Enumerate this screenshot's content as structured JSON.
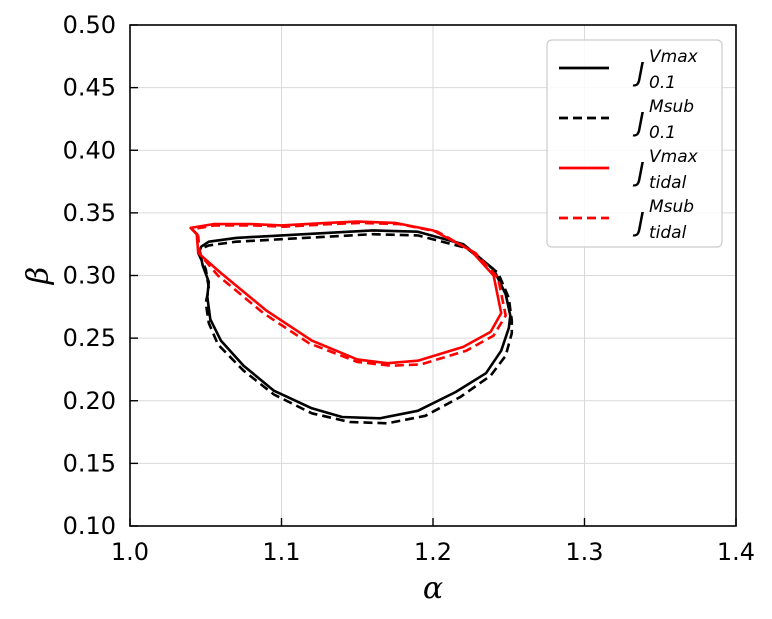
{
  "chart_data": {
    "type": "line",
    "xlabel": "α",
    "ylabel": "β",
    "xlim": [
      1.0,
      1.4
    ],
    "ylim": [
      0.1,
      0.5
    ],
    "xticks": [
      "1.0",
      "1.1",
      "1.2",
      "1.3",
      "1.4"
    ],
    "yticks": [
      "0.10",
      "0.15",
      "0.20",
      "0.25",
      "0.30",
      "0.35",
      "0.40",
      "0.45",
      "0.50"
    ],
    "grid": true,
    "legend_position": "top-right",
    "series": [
      {
        "name": "J_0.1^Vmax",
        "label_main": "J",
        "label_sup": "Vmax",
        "label_sub": "0.1",
        "color": "#000000",
        "dash": "solid",
        "x": [
          1.046,
          1.048,
          1.052,
          1.051,
          1.053,
          1.06,
          1.075,
          1.095,
          1.12,
          1.14,
          1.165,
          1.19,
          1.215,
          1.235,
          1.245,
          1.25,
          1.251,
          1.248,
          1.24,
          1.22,
          1.19,
          1.16,
          1.13,
          1.1,
          1.07,
          1.052,
          1.047,
          1.046
        ],
        "y": [
          0.32,
          0.308,
          0.295,
          0.283,
          0.265,
          0.248,
          0.228,
          0.208,
          0.194,
          0.187,
          0.186,
          0.192,
          0.207,
          0.222,
          0.24,
          0.258,
          0.268,
          0.285,
          0.305,
          0.325,
          0.335,
          0.336,
          0.334,
          0.332,
          0.33,
          0.327,
          0.323,
          0.32
        ]
      },
      {
        "name": "J_0.1^Msub",
        "label_main": "J",
        "label_sup": "Msub",
        "label_sub": "0.1",
        "color": "#000000",
        "dash": "dashed",
        "x": [
          1.045,
          1.05,
          1.052,
          1.05,
          1.052,
          1.058,
          1.075,
          1.095,
          1.12,
          1.145,
          1.17,
          1.195,
          1.218,
          1.238,
          1.248,
          1.252,
          1.252,
          1.25,
          1.243,
          1.222,
          1.19,
          1.16,
          1.13,
          1.1,
          1.07,
          1.052,
          1.046,
          1.045
        ],
        "y": [
          0.318,
          0.305,
          0.29,
          0.278,
          0.262,
          0.245,
          0.224,
          0.205,
          0.19,
          0.183,
          0.182,
          0.188,
          0.203,
          0.22,
          0.236,
          0.254,
          0.264,
          0.282,
          0.302,
          0.322,
          0.332,
          0.333,
          0.331,
          0.329,
          0.327,
          0.324,
          0.321,
          0.318
        ]
      },
      {
        "name": "J_tidal^Vmax",
        "label_main": "J",
        "label_sup": "Vmax",
        "label_sub": "tidal",
        "color": "#ff0000",
        "dash": "solid",
        "x": [
          1.044,
          1.04,
          1.055,
          1.08,
          1.1,
          1.13,
          1.15,
          1.175,
          1.2,
          1.225,
          1.24,
          1.245,
          1.238,
          1.22,
          1.19,
          1.17,
          1.15,
          1.12,
          1.09,
          1.06,
          1.045,
          1.044
        ],
        "y": [
          0.333,
          0.338,
          0.341,
          0.341,
          0.34,
          0.342,
          0.343,
          0.342,
          0.336,
          0.32,
          0.3,
          0.27,
          0.255,
          0.243,
          0.232,
          0.23,
          0.233,
          0.248,
          0.272,
          0.302,
          0.318,
          0.333
        ]
      },
      {
        "name": "J_tidal^Msub",
        "label_main": "J",
        "label_sup": "Msub",
        "label_sub": "tidal",
        "color": "#ff0000",
        "dash": "dashed",
        "x": [
          1.045,
          1.041,
          1.056,
          1.082,
          1.102,
          1.132,
          1.152,
          1.178,
          1.203,
          1.228,
          1.243,
          1.248,
          1.24,
          1.222,
          1.192,
          1.172,
          1.15,
          1.118,
          1.088,
          1.058,
          1.046,
          1.045
        ],
        "y": [
          0.332,
          0.337,
          0.34,
          0.34,
          0.339,
          0.341,
          0.342,
          0.341,
          0.335,
          0.318,
          0.298,
          0.268,
          0.252,
          0.24,
          0.229,
          0.228,
          0.231,
          0.246,
          0.27,
          0.3,
          0.317,
          0.332
        ]
      }
    ]
  }
}
